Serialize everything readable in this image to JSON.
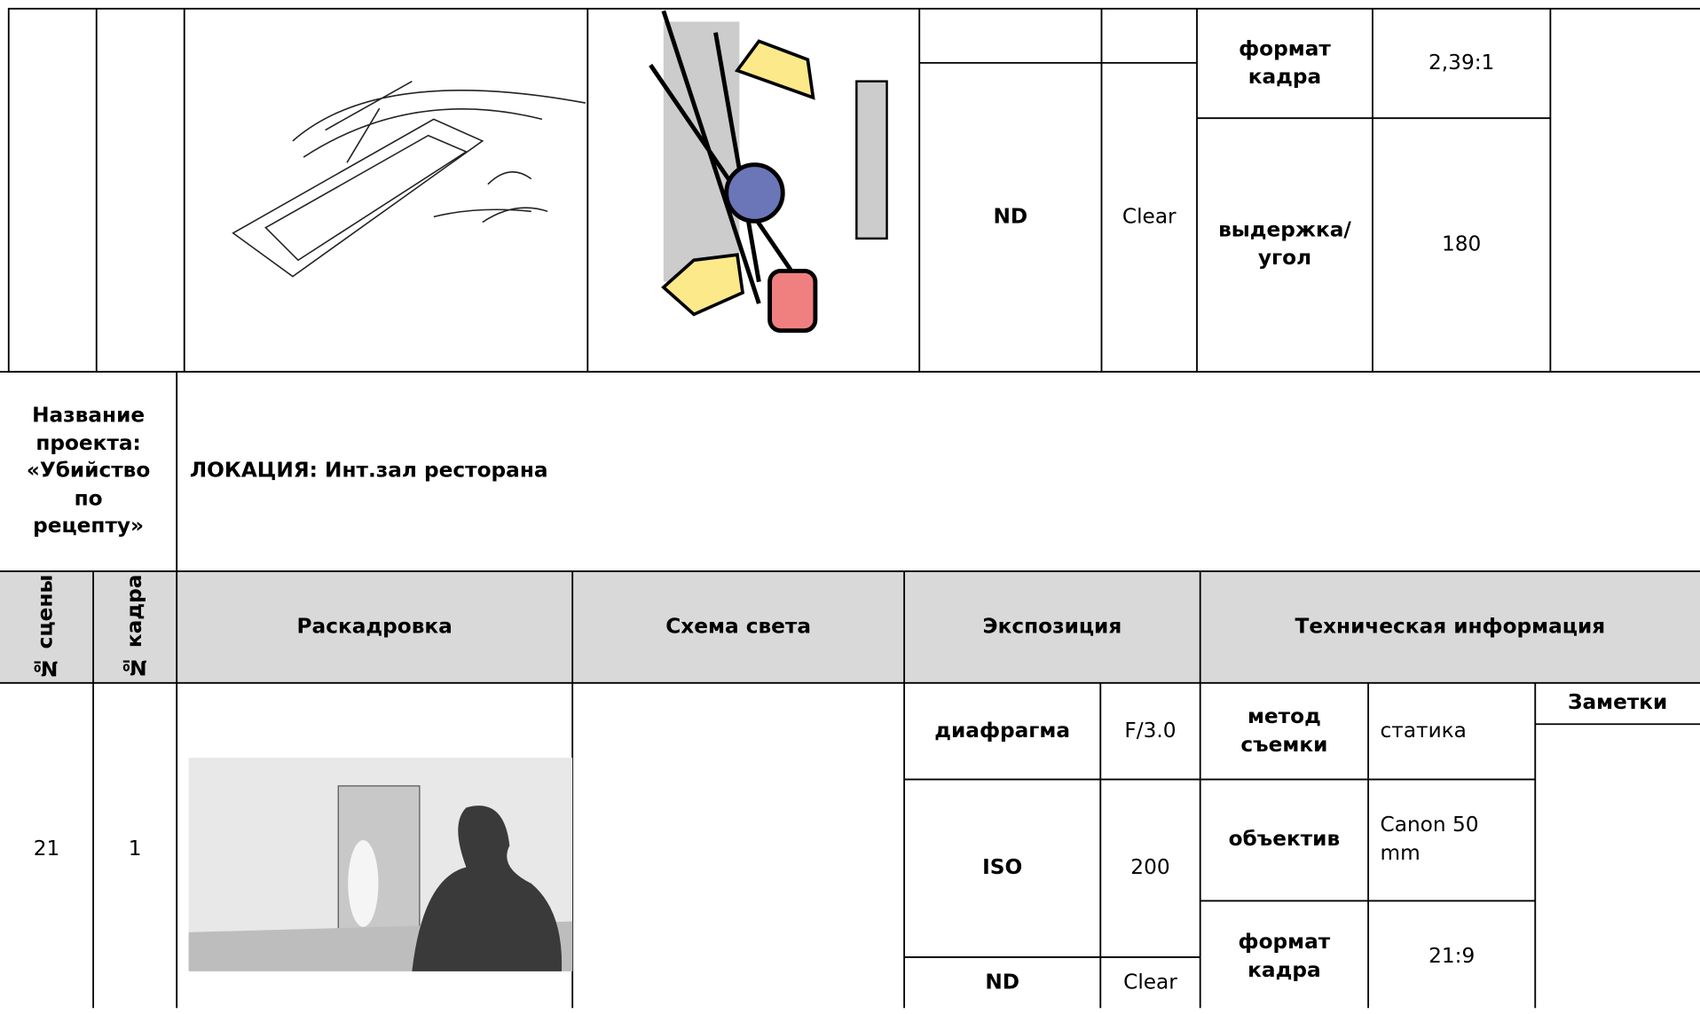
{
  "top_row": {
    "nd_label": "ND",
    "nd_value": "Clear",
    "format_label": "формат кадра",
    "format_value": "2,39:1",
    "shutter_label": "выдержка/ угол",
    "shutter_value": "180"
  },
  "project": {
    "label": "Название проекта: «Убийство по рецепту»",
    "location": "ЛОКАЦИЯ: Инт.зал ресторана"
  },
  "header": {
    "scene": "№ сцены",
    "frame": "№ кадра",
    "storyboard": "Раскадровка",
    "light": "Схема света",
    "exposure": "Экспозиция",
    "tech": "Техническая информация"
  },
  "row": {
    "scene": "21",
    "frame": "1",
    "aperture_label": "диафрагма",
    "aperture": "F/3.0",
    "iso_label": "ISO",
    "iso": "200",
    "nd_label": "ND",
    "nd": "Clear",
    "method_label": "метод съемки",
    "method": "статика",
    "lens_label": "объектив",
    "lens": "Canon 50 mm",
    "format_label": "формат кадра",
    "format": "21:9",
    "notes": "Заметки"
  }
}
